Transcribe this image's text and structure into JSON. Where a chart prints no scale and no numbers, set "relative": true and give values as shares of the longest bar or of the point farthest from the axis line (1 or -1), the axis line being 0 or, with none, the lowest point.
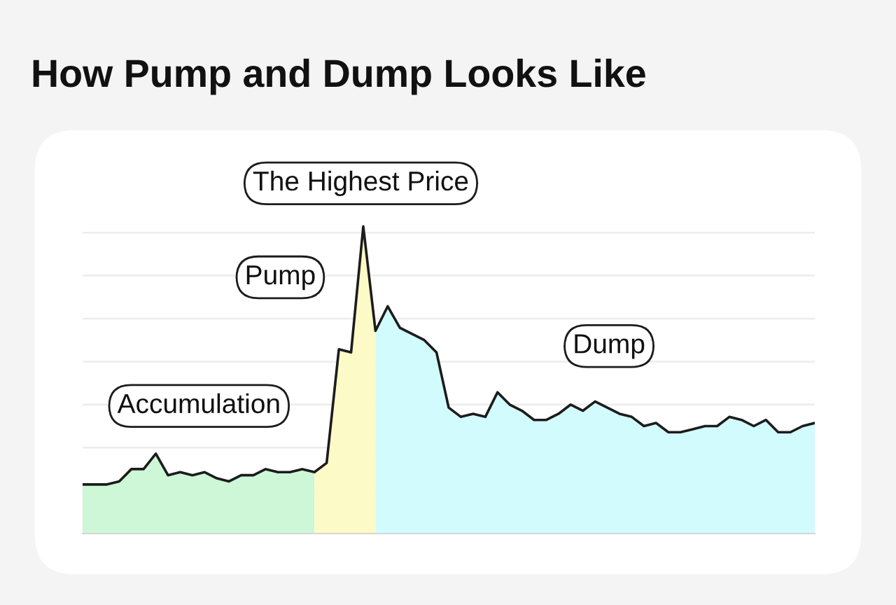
{
  "chart_data": {
    "type": "area",
    "title": "How Pump and Dump Looks Like",
    "relative": true,
    "grid": "y",
    "categories": [
      null,
      null,
      null,
      null,
      null,
      null,
      null,
      null,
      null,
      null,
      null,
      null,
      null,
      null,
      null,
      null,
      null,
      null,
      null,
      null,
      null,
      null,
      null,
      null,
      null,
      null,
      null,
      null,
      null,
      null,
      null,
      null,
      null,
      null,
      null,
      null,
      null,
      null,
      null,
      null,
      null,
      null,
      null,
      null,
      null,
      null,
      null,
      null,
      null,
      null,
      null,
      null,
      null,
      null,
      null,
      null,
      null,
      null,
      null,
      null,
      null
    ],
    "series": [
      {
        "name": "Accumulation",
        "color": "#cdf7d6",
        "values": [
          0.16,
          0.16,
          0.16,
          0.17,
          0.21,
          0.21,
          0.26,
          0.19,
          0.2,
          0.19,
          0.2,
          0.18,
          0.17,
          0.19,
          0.19,
          0.21,
          0.2,
          0.2,
          0.21,
          0.2,
          null,
          null,
          null,
          null,
          null,
          null,
          null,
          null,
          null,
          null,
          null,
          null,
          null,
          null,
          null,
          null,
          null,
          null,
          null,
          null,
          null,
          null,
          null,
          null,
          null,
          null,
          null,
          null,
          null,
          null,
          null,
          null,
          null,
          null,
          null,
          null,
          null,
          null,
          null,
          null,
          null
        ]
      },
      {
        "name": "Pump",
        "color": "#fcfac6",
        "values": [
          null,
          null,
          null,
          null,
          null,
          null,
          null,
          null,
          null,
          null,
          null,
          null,
          null,
          null,
          null,
          null,
          null,
          null,
          null,
          0.2,
          0.23,
          0.6,
          0.59,
          1.0,
          0.66,
          null,
          null,
          null,
          null,
          null,
          null,
          null,
          null,
          null,
          null,
          null,
          null,
          null,
          null,
          null,
          null,
          null,
          null,
          null,
          null,
          null,
          null,
          null,
          null,
          null,
          null,
          null,
          null,
          null,
          null,
          null,
          null,
          null,
          null,
          null,
          null
        ]
      },
      {
        "name": "Dump",
        "color": "#d2fbfd",
        "values": [
          null,
          null,
          null,
          null,
          null,
          null,
          null,
          null,
          null,
          null,
          null,
          null,
          null,
          null,
          null,
          null,
          null,
          null,
          null,
          null,
          null,
          null,
          null,
          null,
          0.66,
          0.74,
          0.67,
          0.65,
          0.63,
          0.59,
          0.41,
          0.38,
          0.39,
          0.38,
          0.46,
          0.42,
          0.4,
          0.37,
          0.37,
          0.39,
          0.42,
          0.4,
          0.43,
          0.41,
          0.39,
          0.38,
          0.35,
          0.36,
          0.33,
          0.33,
          0.34,
          0.35,
          0.35,
          0.38,
          0.37,
          0.35,
          0.37,
          0.33,
          0.33,
          0.35,
          0.36
        ]
      },
      {
        "type": "line",
        "color": "#1c1c1c",
        "values": [
          0.16,
          0.16,
          0.16,
          0.17,
          0.21,
          0.21,
          0.26,
          0.19,
          0.2,
          0.19,
          0.2,
          0.18,
          0.17,
          0.19,
          0.19,
          0.21,
          0.2,
          0.2,
          0.21,
          0.2,
          0.23,
          0.6,
          0.59,
          1.0,
          0.66,
          0.74,
          0.67,
          0.65,
          0.63,
          0.59,
          0.41,
          0.38,
          0.39,
          0.38,
          0.46,
          0.42,
          0.4,
          0.37,
          0.37,
          0.39,
          0.42,
          0.4,
          0.43,
          0.41,
          0.39,
          0.38,
          0.35,
          0.36,
          0.33,
          0.33,
          0.34,
          0.35,
          0.35,
          0.38,
          0.37,
          0.35,
          0.37,
          0.33,
          0.33,
          0.35,
          0.36
        ]
      }
    ],
    "annotations": [
      "The Highest Price"
    ]
  }
}
